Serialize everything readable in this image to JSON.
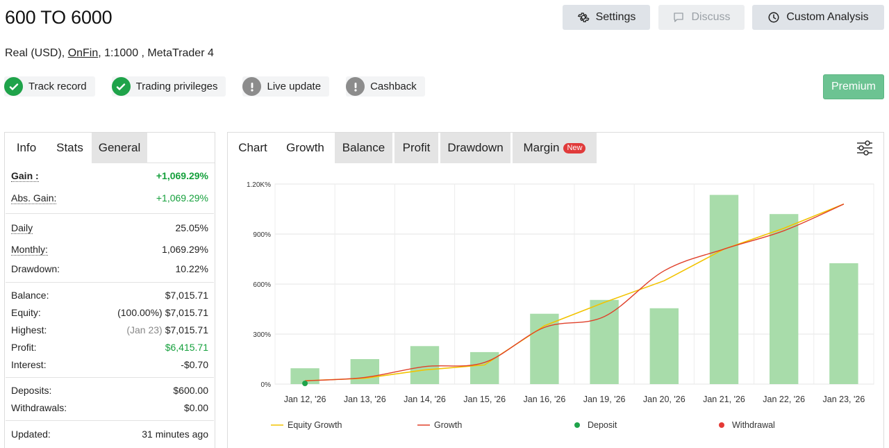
{
  "header": {
    "title": "600 TO 6000",
    "account_type": "Real (USD),",
    "broker": "OnFin",
    "leverage_platform": ", 1:1000 , MetaTrader 4"
  },
  "buttons": {
    "settings": "Settings",
    "discuss": "Discuss",
    "custom_analysis": "Custom Analysis",
    "premium": "Premium"
  },
  "badges": [
    {
      "label": "Track record",
      "status": "ok"
    },
    {
      "label": "Trading privileges",
      "status": "ok"
    },
    {
      "label": "Live update",
      "status": "warn"
    },
    {
      "label": "Cashback",
      "status": "warn"
    }
  ],
  "left_tabs": [
    "Info",
    "Stats",
    "General"
  ],
  "stats": {
    "gain_label": "Gain :",
    "gain_value": "+1,069.29%",
    "abs_gain_label": "Abs. Gain:",
    "abs_gain_value": "+1,069.29%",
    "daily_label": "Daily",
    "daily_value": "25.05%",
    "monthly_label": "Monthly:",
    "monthly_value": "1,069.29%",
    "drawdown_label": "Drawdown:",
    "drawdown_value": "10.22%",
    "balance_label": "Balance:",
    "balance_value": "$7,015.71",
    "equity_label": "Equity:",
    "equity_pct": "(100.00%)",
    "equity_value": "$7,015.71",
    "highest_label": "Highest:",
    "highest_date": "(Jan 23)",
    "highest_value": "$7,015.71",
    "profit_label": "Profit:",
    "profit_value": "$6,415.71",
    "interest_label": "Interest:",
    "interest_value": "-$0.70",
    "deposits_label": "Deposits:",
    "deposits_value": "$600.00",
    "withdrawals_label": "Withdrawals:",
    "withdrawals_value": "$0.00",
    "updated_label": "Updated:",
    "updated_value": "31 minutes ago"
  },
  "chart_tabs": {
    "chart": "Chart",
    "growth": "Growth",
    "balance": "Balance",
    "profit": "Profit",
    "drawdown": "Drawdown",
    "margin": "Margin",
    "new_badge": "New"
  },
  "colors": {
    "bars": "#a8dcaa",
    "equity_growth": "#f2c300",
    "growth": "#e0402a",
    "deposit": "#1fa34a",
    "withdrawal": "#e53935",
    "green_text": "#15a03c"
  },
  "chart_data": {
    "type": "bar",
    "categories": [
      "Jan 12, '26",
      "Jan 13, '26",
      "Jan 14, '26",
      "Jan 15, '26",
      "Jan 16, '26",
      "Jan 19, '26",
      "Jan 20, '26",
      "Jan 21, '26",
      "Jan 22, '26",
      "Jan 23, '26"
    ],
    "y_ticks": [
      "0%",
      "300%",
      "600%",
      "900%",
      "1.20K%"
    ],
    "ylim": [
      0,
      1200
    ],
    "bars": [
      95,
      150,
      228,
      192,
      422,
      505,
      455,
      1135,
      1020,
      725
    ],
    "series": [
      {
        "name": "Equity Growth",
        "kind": "line",
        "values": [
          20,
          35,
          85,
          115,
          350,
          490,
          620,
          810,
          935,
          1080
        ]
      },
      {
        "name": "Growth",
        "kind": "line",
        "values": [
          20,
          40,
          105,
          130,
          340,
          405,
          680,
          810,
          920,
          1080
        ]
      }
    ],
    "deposit_points": [
      {
        "x": "Jan 12, '26",
        "y": 0
      }
    ],
    "legend": [
      {
        "name": "Equity Growth",
        "marker": "line"
      },
      {
        "name": "Growth",
        "marker": "line"
      },
      {
        "name": "Deposit",
        "marker": "dot"
      },
      {
        "name": "Withdrawal",
        "marker": "dot"
      }
    ],
    "grid": true,
    "legend_position": "bottom"
  }
}
